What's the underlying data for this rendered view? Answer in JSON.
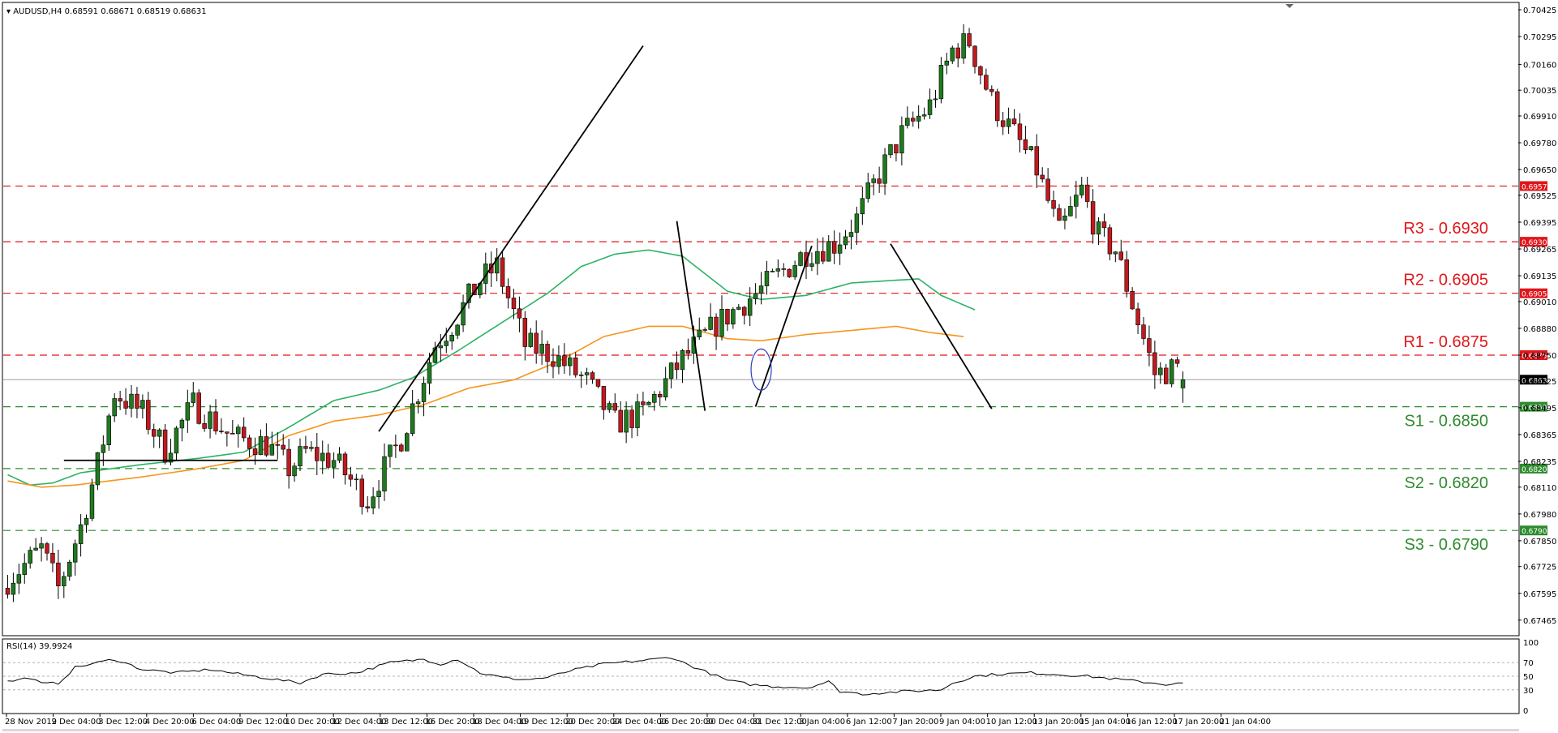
{
  "header": {
    "symbol_line": "AUDUSD,H4  0.68591 0.68671 0.68519 0.68631",
    "rsi_label": "RSI(14) 39.9924"
  },
  "colors": {
    "bull_candle": "#1f7a1f",
    "bear_candle": "#c0191e",
    "ma_short": "#2db265",
    "ma_long": "#f7941d",
    "resistance": "#e0161b",
    "support": "#2e8b2e",
    "trendline": "#000000",
    "rsi_line": "#000000"
  },
  "chart_data": {
    "type": "candlestick",
    "symbol": "AUDUSD",
    "timeframe": "H4",
    "last_quote": {
      "open": 0.68591,
      "high": 0.68671,
      "low": 0.68519,
      "close": 0.68631
    },
    "ylim": [
      0.67425,
      0.70425
    ],
    "y_ticks": [
      "0.70425",
      "0.70295",
      "0.70160",
      "0.70035",
      "0.69910",
      "0.69780",
      "0.69650",
      "0.69525",
      "0.69395",
      "0.69265",
      "0.69135",
      "0.69010",
      "0.68880",
      "0.68750",
      "0.68625",
      "0.68495",
      "0.68365",
      "0.68235",
      "0.68110",
      "0.67980",
      "0.67850",
      "0.67725",
      "0.67595",
      "0.67465"
    ],
    "x_ticks": [
      "28 Nov 2019",
      "2 Dec 04:00",
      "3 Dec 12:00",
      "4 Dec 20:00",
      "6 Dec 04:00",
      "9 Dec 12:00",
      "10 Dec 20:00",
      "12 Dec 04:00",
      "13 Dec 12:00",
      "16 Dec 20:00",
      "18 Dec 04:00",
      "19 Dec 12:00",
      "20 Dec 20:00",
      "24 Dec 04:00",
      "26 Dec 20:00",
      "30 Dec 04:00",
      "31 Dec 12:00",
      "3 Jan 04:00",
      "6 Jan 12:00",
      "7 Jan 20:00",
      "9 Jan 04:00",
      "10 Jan 12:00",
      "13 Jan 20:00",
      "15 Jan 04:00",
      "16 Jan 12:00",
      "17 Jan 20:00",
      "21 Jan 04:00"
    ],
    "current_price": 0.68631,
    "levels": [
      {
        "label": "R3 - 0.6930",
        "tag": "0.69300",
        "value": 0.693,
        "kind": "resistance",
        "labeled": true
      },
      {
        "label": "R2 - 0.6905",
        "tag": "0.69050",
        "value": 0.6905,
        "kind": "resistance",
        "labeled": true
      },
      {
        "label": "R1 - 0.6875",
        "tag": "0.68750",
        "value": 0.6875,
        "kind": "resistance",
        "labeled": true
      },
      {
        "label": "S1 - 0.6850",
        "tag": "0.68500",
        "value": 0.685,
        "kind": "support",
        "labeled": true
      },
      {
        "label": "S2 - 0.6820",
        "tag": "0.68200",
        "value": 0.682,
        "kind": "support",
        "labeled": true
      },
      {
        "label": "S3 - 0.6790",
        "tag": "0.67900",
        "value": 0.679,
        "kind": "support",
        "labeled": true
      },
      {
        "label": "",
        "tag": "0.69570",
        "value": 0.6957,
        "kind": "resistance",
        "labeled": false
      }
    ],
    "candle_count": 210,
    "close_anchors": [
      [
        0,
        0.6766
      ],
      [
        6,
        0.6781
      ],
      [
        9,
        0.6762
      ],
      [
        13,
        0.6792
      ],
      [
        16,
        0.6822
      ],
      [
        19,
        0.6857
      ],
      [
        24,
        0.6847
      ],
      [
        28,
        0.6829
      ],
      [
        33,
        0.6851
      ],
      [
        40,
        0.6835
      ],
      [
        46,
        0.6832
      ],
      [
        50,
        0.682
      ],
      [
        53,
        0.6828
      ],
      [
        58,
        0.6824
      ],
      [
        64,
        0.6805
      ],
      [
        70,
        0.6835
      ],
      [
        76,
        0.688
      ],
      [
        79,
        0.689
      ],
      [
        84,
        0.6911
      ],
      [
        87,
        0.6918
      ],
      [
        92,
        0.688
      ],
      [
        97,
        0.6875
      ],
      [
        103,
        0.6862
      ],
      [
        108,
        0.6842
      ],
      [
        113,
        0.6847
      ],
      [
        120,
        0.6873
      ],
      [
        126,
        0.689
      ],
      [
        134,
        0.6907
      ],
      [
        142,
        0.6925
      ],
      [
        147,
        0.6929
      ],
      [
        151,
        0.6941
      ],
      [
        155,
        0.6963
      ],
      [
        159,
        0.6982
      ],
      [
        164,
        0.6996
      ],
      [
        168,
        0.7023
      ],
      [
        171,
        0.7027
      ],
      [
        175,
        0.6998
      ],
      [
        179,
        0.6982
      ],
      [
        183,
        0.6965
      ],
      [
        187,
        0.6934
      ],
      [
        191,
        0.6955
      ],
      [
        194,
        0.6933
      ],
      [
        197,
        0.6926
      ],
      [
        200,
        0.69
      ],
      [
        204,
        0.6866
      ],
      [
        210,
        0.687
      ]
    ],
    "ma_short": {
      "period_label": "",
      "anchors": [
        [
          0,
          0.6817
        ],
        [
          4,
          0.6812
        ],
        [
          8,
          0.6813
        ],
        [
          13,
          0.6818
        ],
        [
          24,
          0.6822
        ],
        [
          34,
          0.6825
        ],
        [
          42,
          0.6828
        ],
        [
          50,
          0.684
        ],
        [
          58,
          0.6853
        ],
        [
          66,
          0.6858
        ],
        [
          72,
          0.6864
        ],
        [
          80,
          0.6877
        ],
        [
          88,
          0.6891
        ],
        [
          96,
          0.6905
        ],
        [
          102,
          0.6918
        ],
        [
          108,
          0.6924
        ],
        [
          114,
          0.6926
        ],
        [
          120,
          0.6923
        ],
        [
          128,
          0.6906
        ],
        [
          134,
          0.6902
        ],
        [
          142,
          0.6904
        ],
        [
          150,
          0.691
        ],
        [
          162,
          0.6912
        ],
        [
          166,
          0.6904
        ],
        [
          172,
          0.6897
        ]
      ]
    },
    "ma_long": {
      "period_label": "",
      "anchors": [
        [
          0,
          0.6814
        ],
        [
          6,
          0.6811
        ],
        [
          12,
          0.6812
        ],
        [
          24,
          0.6816
        ],
        [
          34,
          0.682
        ],
        [
          42,
          0.6824
        ],
        [
          50,
          0.6836
        ],
        [
          58,
          0.6843
        ],
        [
          66,
          0.6846
        ],
        [
          74,
          0.6851
        ],
        [
          82,
          0.6859
        ],
        [
          90,
          0.6863
        ],
        [
          98,
          0.6872
        ],
        [
          106,
          0.6884
        ],
        [
          114,
          0.6889
        ],
        [
          120,
          0.6889
        ],
        [
          128,
          0.6883
        ],
        [
          134,
          0.6882
        ],
        [
          142,
          0.6885
        ],
        [
          150,
          0.6887
        ],
        [
          158,
          0.6889
        ],
        [
          164,
          0.6886
        ],
        [
          170,
          0.6884
        ]
      ]
    },
    "trendlines": [
      {
        "from": [
          66,
          0.6838
        ],
        "to": [
          113,
          0.7025
        ]
      },
      {
        "from": [
          10,
          0.6824
        ],
        "to": [
          48,
          0.6824
        ]
      },
      {
        "from": [
          119,
          0.694
        ],
        "to": [
          124,
          0.6848
        ]
      },
      {
        "from": [
          133,
          0.685
        ],
        "to": [
          143,
          0.6928
        ]
      },
      {
        "from": [
          157,
          0.6929
        ],
        "to": [
          175,
          0.6849
        ]
      }
    ],
    "ellipse": {
      "center": [
        134,
        0.6868
      ],
      "rx_bars": 1.8,
      "ry_price": 0.001
    },
    "rsi": {
      "label": "RSI(14)",
      "value": 39.9924,
      "levels": [
        70,
        50,
        30
      ],
      "ylim": [
        0,
        100
      ],
      "y_ticks": [
        "100",
        "70",
        "50",
        "30",
        "0"
      ],
      "anchors": [
        [
          0,
          42
        ],
        [
          4,
          48
        ],
        [
          6,
          39
        ],
        [
          9,
          40
        ],
        [
          12,
          63
        ],
        [
          16,
          70
        ],
        [
          19,
          75
        ],
        [
          24,
          60
        ],
        [
          30,
          55
        ],
        [
          36,
          60
        ],
        [
          42,
          52
        ],
        [
          48,
          45
        ],
        [
          52,
          40
        ],
        [
          56,
          53
        ],
        [
          62,
          55
        ],
        [
          68,
          70
        ],
        [
          74,
          75
        ],
        [
          77,
          68
        ],
        [
          80,
          75
        ],
        [
          84,
          55
        ],
        [
          88,
          48
        ],
        [
          92,
          45
        ],
        [
          96,
          48
        ],
        [
          100,
          58
        ],
        [
          106,
          68
        ],
        [
          114,
          74
        ],
        [
          118,
          78
        ],
        [
          121,
          67
        ],
        [
          128,
          44
        ],
        [
          132,
          38
        ],
        [
          136,
          35
        ],
        [
          140,
          34
        ],
        [
          142,
          33
        ],
        [
          146,
          42
        ],
        [
          148,
          28
        ],
        [
          152,
          24
        ],
        [
          156,
          26
        ],
        [
          160,
          28
        ],
        [
          166,
          30
        ],
        [
          168,
          40
        ],
        [
          172,
          50
        ],
        [
          176,
          53
        ],
        [
          182,
          55
        ],
        [
          186,
          53
        ],
        [
          192,
          50
        ],
        [
          198,
          45
        ],
        [
          204,
          40
        ],
        [
          206,
          38
        ],
        [
          210,
          40
        ]
      ]
    }
  }
}
